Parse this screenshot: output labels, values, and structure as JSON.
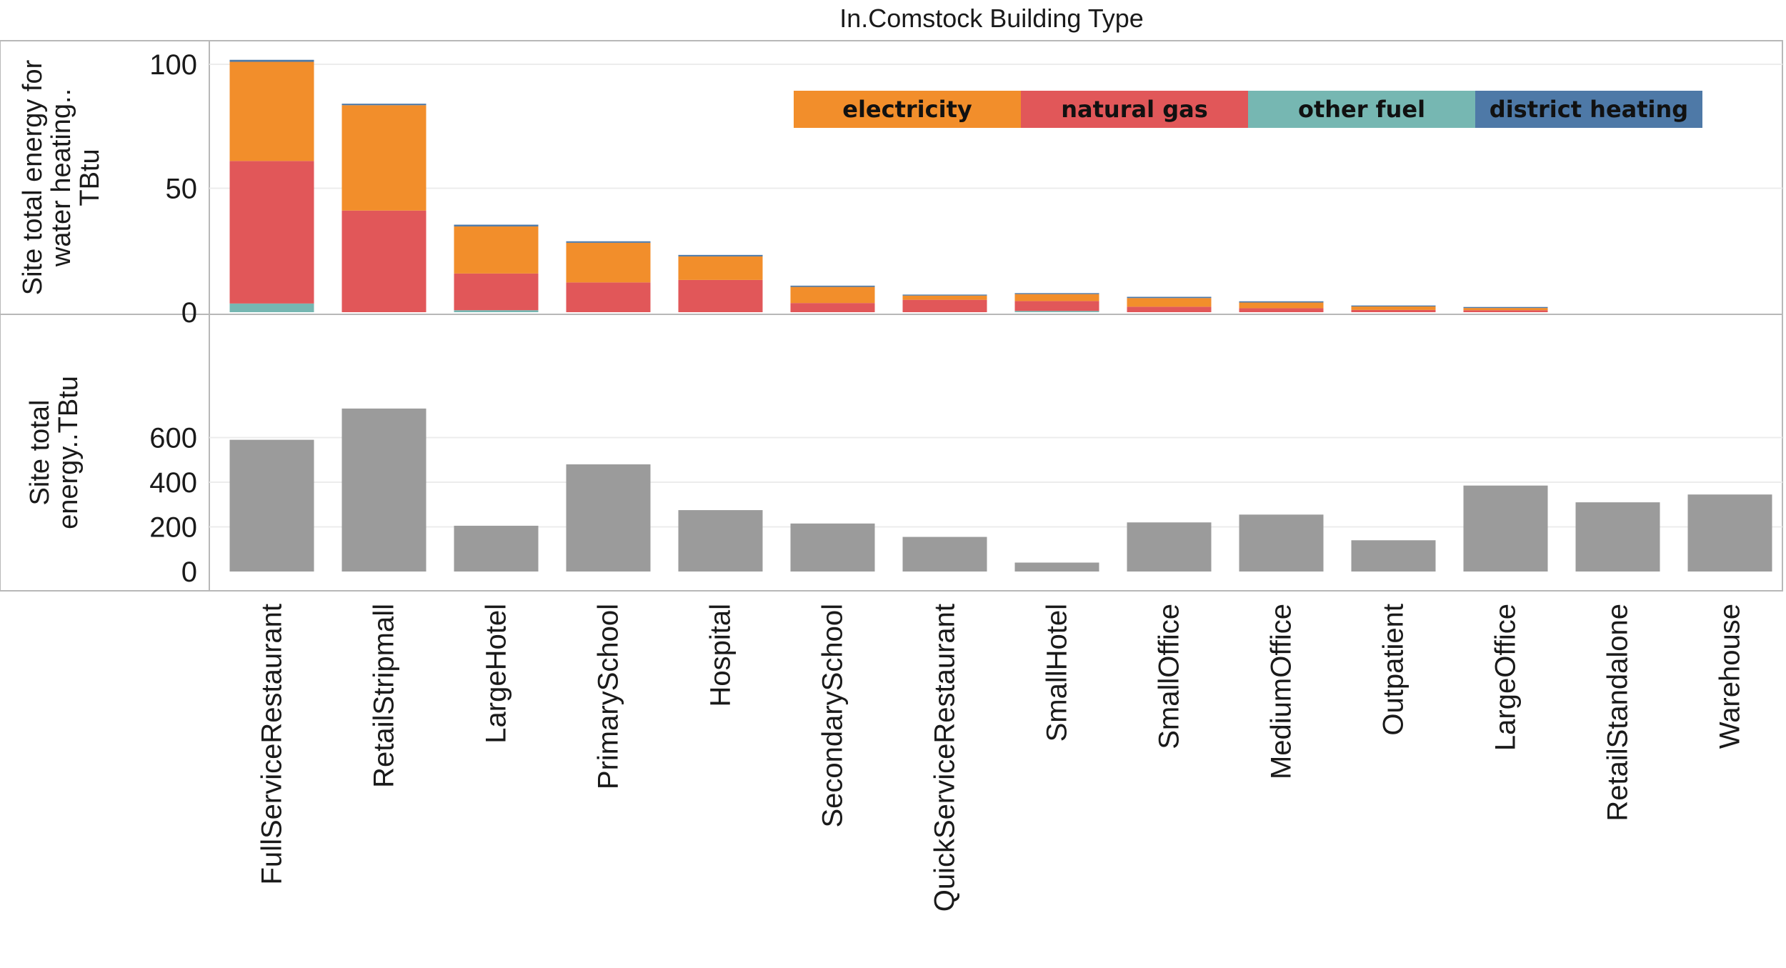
{
  "chart_data": {
    "type": "bar",
    "title": "In.Comstock Building Type",
    "categories": [
      "FullServiceRestaurant",
      "RetailStripmall",
      "LargeHotel",
      "PrimarySchool",
      "Hospital",
      "SecondarySchool",
      "QuickServiceRestaurant",
      "SmallHotel",
      "SmallOffice",
      "MediumOffice",
      "Outpatient",
      "LargeOffice",
      "RetailStandalone",
      "Warehouse"
    ],
    "panels": [
      {
        "id": "water-heating",
        "type": "stacked-bar",
        "ylabel": [
          "Site total energy for",
          "water heating..",
          "TBtu"
        ],
        "yticks": [
          0,
          50,
          100
        ],
        "ylim": [
          -5,
          105
        ],
        "grid": true,
        "legend_position": "top-right",
        "series": [
          {
            "name": "other fuel",
            "color": "#76b7b2",
            "values": [
              3.5,
              0,
              0.8,
              0,
              0,
              0,
              0,
              0.5,
              0,
              0,
              0,
              0,
              0,
              0
            ]
          },
          {
            "name": "natural gas",
            "color": "#e15759",
            "values": [
              57.5,
              41,
              14.8,
              12,
              13,
              3.7,
              5,
              4,
              2.2,
              1.6,
              0.9,
              0.8,
              0,
              0
            ]
          },
          {
            "name": "electricity",
            "color": "#f28e2b",
            "values": [
              40,
              42.5,
              19,
              16,
              9.5,
              6.5,
              1.7,
              2.8,
              3.5,
              2.3,
              1.4,
              0.9,
              0,
              0
            ]
          },
          {
            "name": "district heating",
            "color": "#4e79a7",
            "values": [
              0.8,
              0.6,
              0.7,
              0.6,
              0.6,
              0.5,
              0.4,
              0.4,
              0.5,
              0.5,
              0.4,
              0.4,
              0,
              0
            ]
          }
        ]
      },
      {
        "id": "site-total",
        "type": "bar",
        "ylabel": [
          "Site total",
          "energy..TBtu"
        ],
        "yticks": [
          0,
          200,
          400,
          600
        ],
        "ylim": [
          -50,
          760
        ],
        "grid": true,
        "series": [
          {
            "color": "#9b9b9b",
            "values": [
              590,
              730,
              205,
              480,
              275,
              215,
              155,
              40,
              220,
              255,
              140,
              385,
              310,
              345
            ]
          }
        ]
      }
    ],
    "legend": [
      "electricity",
      "natural gas",
      "other fuel",
      "district heating"
    ]
  }
}
